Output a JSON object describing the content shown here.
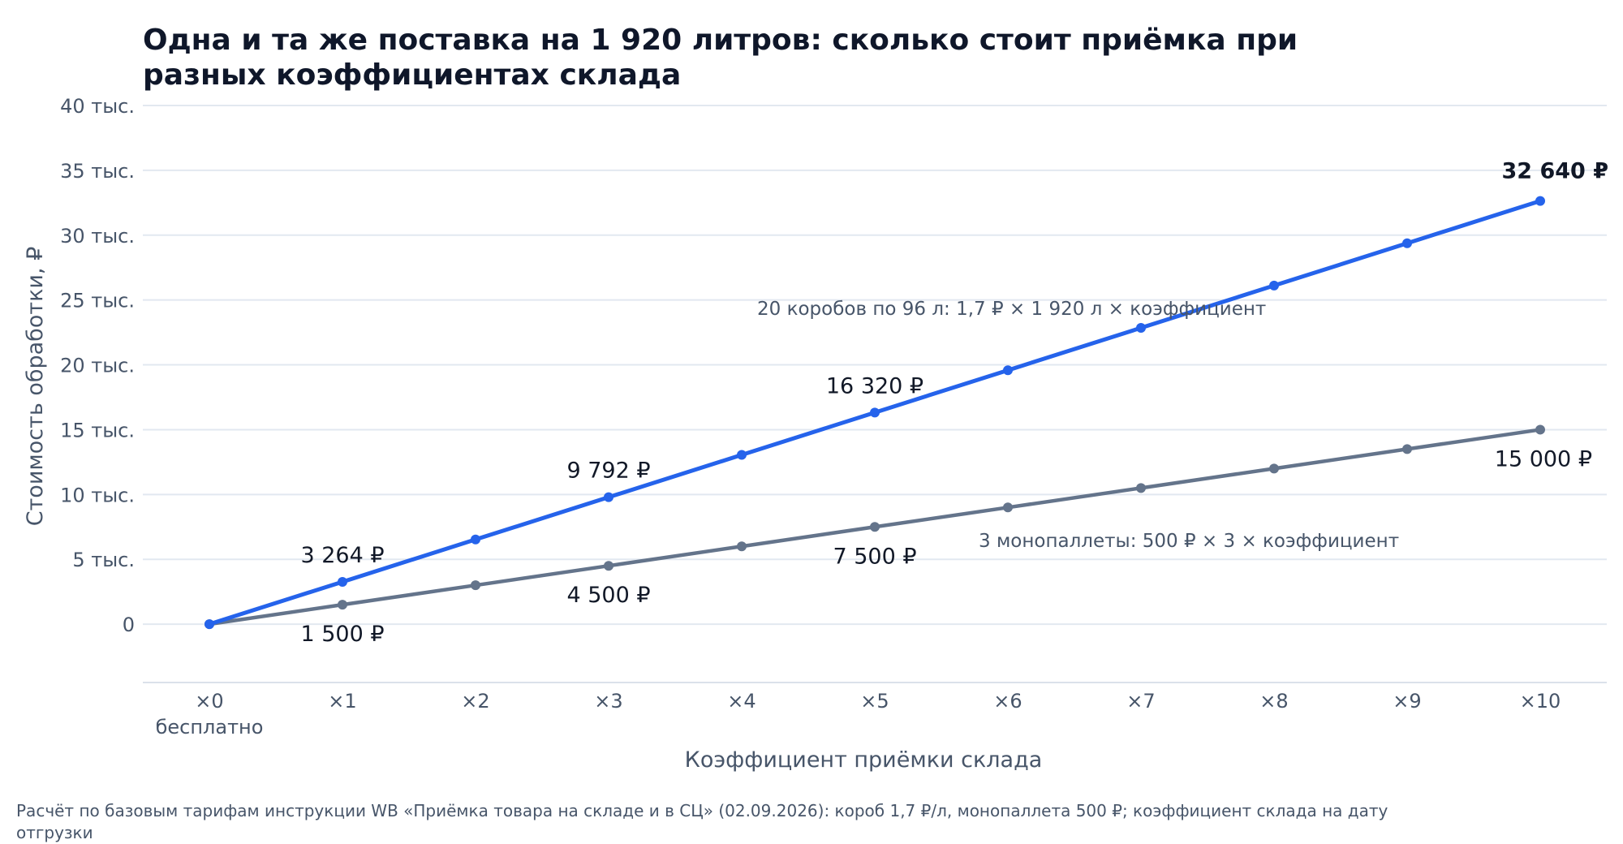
{
  "chart_data": {
    "type": "line",
    "title_lines": [
      "Одна и та же поставка на 1 920 литров: сколько стоит приёмка при",
      "разных коэффициентах склада"
    ],
    "xlabel": "Коэффициент приёмки склада",
    "ylabel": "Стоимость обработки, ₽",
    "categories": [
      "×0",
      "×1",
      "×2",
      "×3",
      "×4",
      "×5",
      "×6",
      "×7",
      "×8",
      "×9",
      "×10"
    ],
    "category_sublabel": "бесплатно",
    "yticks": [
      {
        "value": 0,
        "label": "0"
      },
      {
        "value": 5000,
        "label": "5 тыс."
      },
      {
        "value": 10000,
        "label": "10 тыс."
      },
      {
        "value": 15000,
        "label": "15 тыс."
      },
      {
        "value": 20000,
        "label": "20 тыс."
      },
      {
        "value": 25000,
        "label": "25 тыс."
      },
      {
        "value": 30000,
        "label": "30 тыс."
      },
      {
        "value": 35000,
        "label": "35 тыс."
      },
      {
        "value": 40000,
        "label": "40 тыс."
      }
    ],
    "ylim": [
      -4500,
      40000
    ],
    "grid": true,
    "series": [
      {
        "key": "boxes",
        "color": "#2563eb",
        "values": [
          0,
          3264,
          6528,
          9792,
          13056,
          16320,
          19584,
          22848,
          26112,
          29376,
          32640
        ],
        "annotation": "20 коробов по 96 л: 1,7 ₽ × 1 920 л × коэффициент",
        "labels": [
          {
            "index": 1,
            "text": "3 264 ₽",
            "bold": false
          },
          {
            "index": 3,
            "text": "9 792 ₽",
            "bold": false
          },
          {
            "index": 5,
            "text": "16 320 ₽",
            "bold": false
          },
          {
            "index": 10,
            "text": "32 640 ₽",
            "bold": true
          }
        ]
      },
      {
        "key": "pallets",
        "color": "#64748b",
        "values": [
          0,
          1500,
          3000,
          4500,
          6000,
          7500,
          9000,
          10500,
          12000,
          13500,
          15000
        ],
        "annotation": "3 монопаллеты: 500 ₽ × 3 × коэффициент",
        "labels": [
          {
            "index": 1,
            "text": "1 500 ₽",
            "bold": false
          },
          {
            "index": 3,
            "text": "4 500 ₽",
            "bold": false
          },
          {
            "index": 5,
            "text": "7 500 ₽",
            "bold": false
          },
          {
            "index": 10,
            "text": "15 000 ₽",
            "bold": false
          }
        ]
      }
    ],
    "footnote_lines": [
      "Расчёт по базовым тарифам инструкции WB «Приёмка товара на складе и в СЦ» (02.09.2026): короб 1,7 ₽/л, монопаллета 500 ₽; коэффициент склада на дату",
      "отгрузки"
    ]
  }
}
